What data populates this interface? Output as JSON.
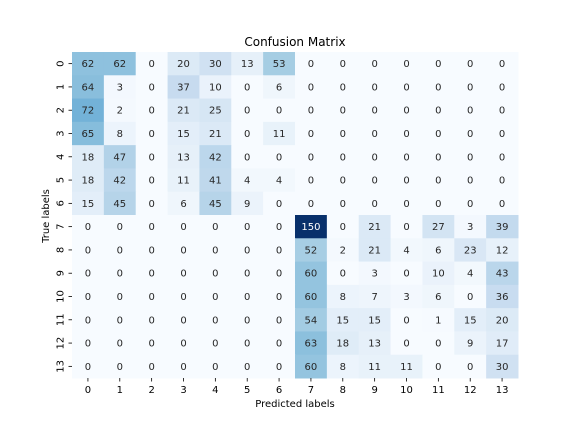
{
  "chart_data": {
    "type": "heatmap",
    "title": "Confusion Matrix",
    "xlabel": "Predicted labels",
    "ylabel": "True labels",
    "x_categories": [
      "0",
      "1",
      "2",
      "3",
      "4",
      "5",
      "6",
      "7",
      "8",
      "9",
      "10",
      "11",
      "12",
      "13"
    ],
    "y_categories": [
      "0",
      "1",
      "2",
      "3",
      "4",
      "5",
      "6",
      "7",
      "8",
      "9",
      "10",
      "11",
      "12",
      "13"
    ],
    "values": [
      [
        62,
        62,
        0,
        20,
        30,
        13,
        53,
        0,
        0,
        0,
        0,
        0,
        0,
        0
      ],
      [
        64,
        3,
        0,
        37,
        10,
        0,
        6,
        0,
        0,
        0,
        0,
        0,
        0,
        0
      ],
      [
        72,
        2,
        0,
        21,
        25,
        0,
        0,
        0,
        0,
        0,
        0,
        0,
        0,
        0
      ],
      [
        65,
        8,
        0,
        15,
        21,
        0,
        11,
        0,
        0,
        0,
        0,
        0,
        0,
        0
      ],
      [
        18,
        47,
        0,
        13,
        42,
        0,
        0,
        0,
        0,
        0,
        0,
        0,
        0,
        0
      ],
      [
        18,
        42,
        0,
        11,
        41,
        4,
        4,
        0,
        0,
        0,
        0,
        0,
        0,
        0
      ],
      [
        15,
        45,
        0,
        6,
        45,
        9,
        0,
        0,
        0,
        0,
        0,
        0,
        0,
        0
      ],
      [
        0,
        0,
        0,
        0,
        0,
        0,
        0,
        150,
        0,
        21,
        0,
        27,
        3,
        39
      ],
      [
        0,
        0,
        0,
        0,
        0,
        0,
        0,
        52,
        2,
        21,
        4,
        6,
        23,
        12
      ],
      [
        0,
        0,
        0,
        0,
        0,
        0,
        0,
        60,
        0,
        3,
        0,
        10,
        4,
        43
      ],
      [
        0,
        0,
        0,
        0,
        0,
        0,
        0,
        60,
        8,
        7,
        3,
        6,
        0,
        36
      ],
      [
        0,
        0,
        0,
        0,
        0,
        0,
        0,
        54,
        15,
        15,
        0,
        1,
        15,
        20
      ],
      [
        0,
        0,
        0,
        0,
        0,
        0,
        0,
        63,
        18,
        13,
        0,
        0,
        9,
        17
      ],
      [
        0,
        0,
        0,
        0,
        0,
        0,
        0,
        60,
        8,
        11,
        11,
        0,
        0,
        30
      ]
    ],
    "colormap": "Blues",
    "value_range": [
      0,
      150
    ],
    "colorbar": false,
    "grid": false,
    "colors": {
      "low": "#f7fbff",
      "high": "#08306b",
      "text_dark": "#262626",
      "text_light": "#ffffff"
    }
  }
}
